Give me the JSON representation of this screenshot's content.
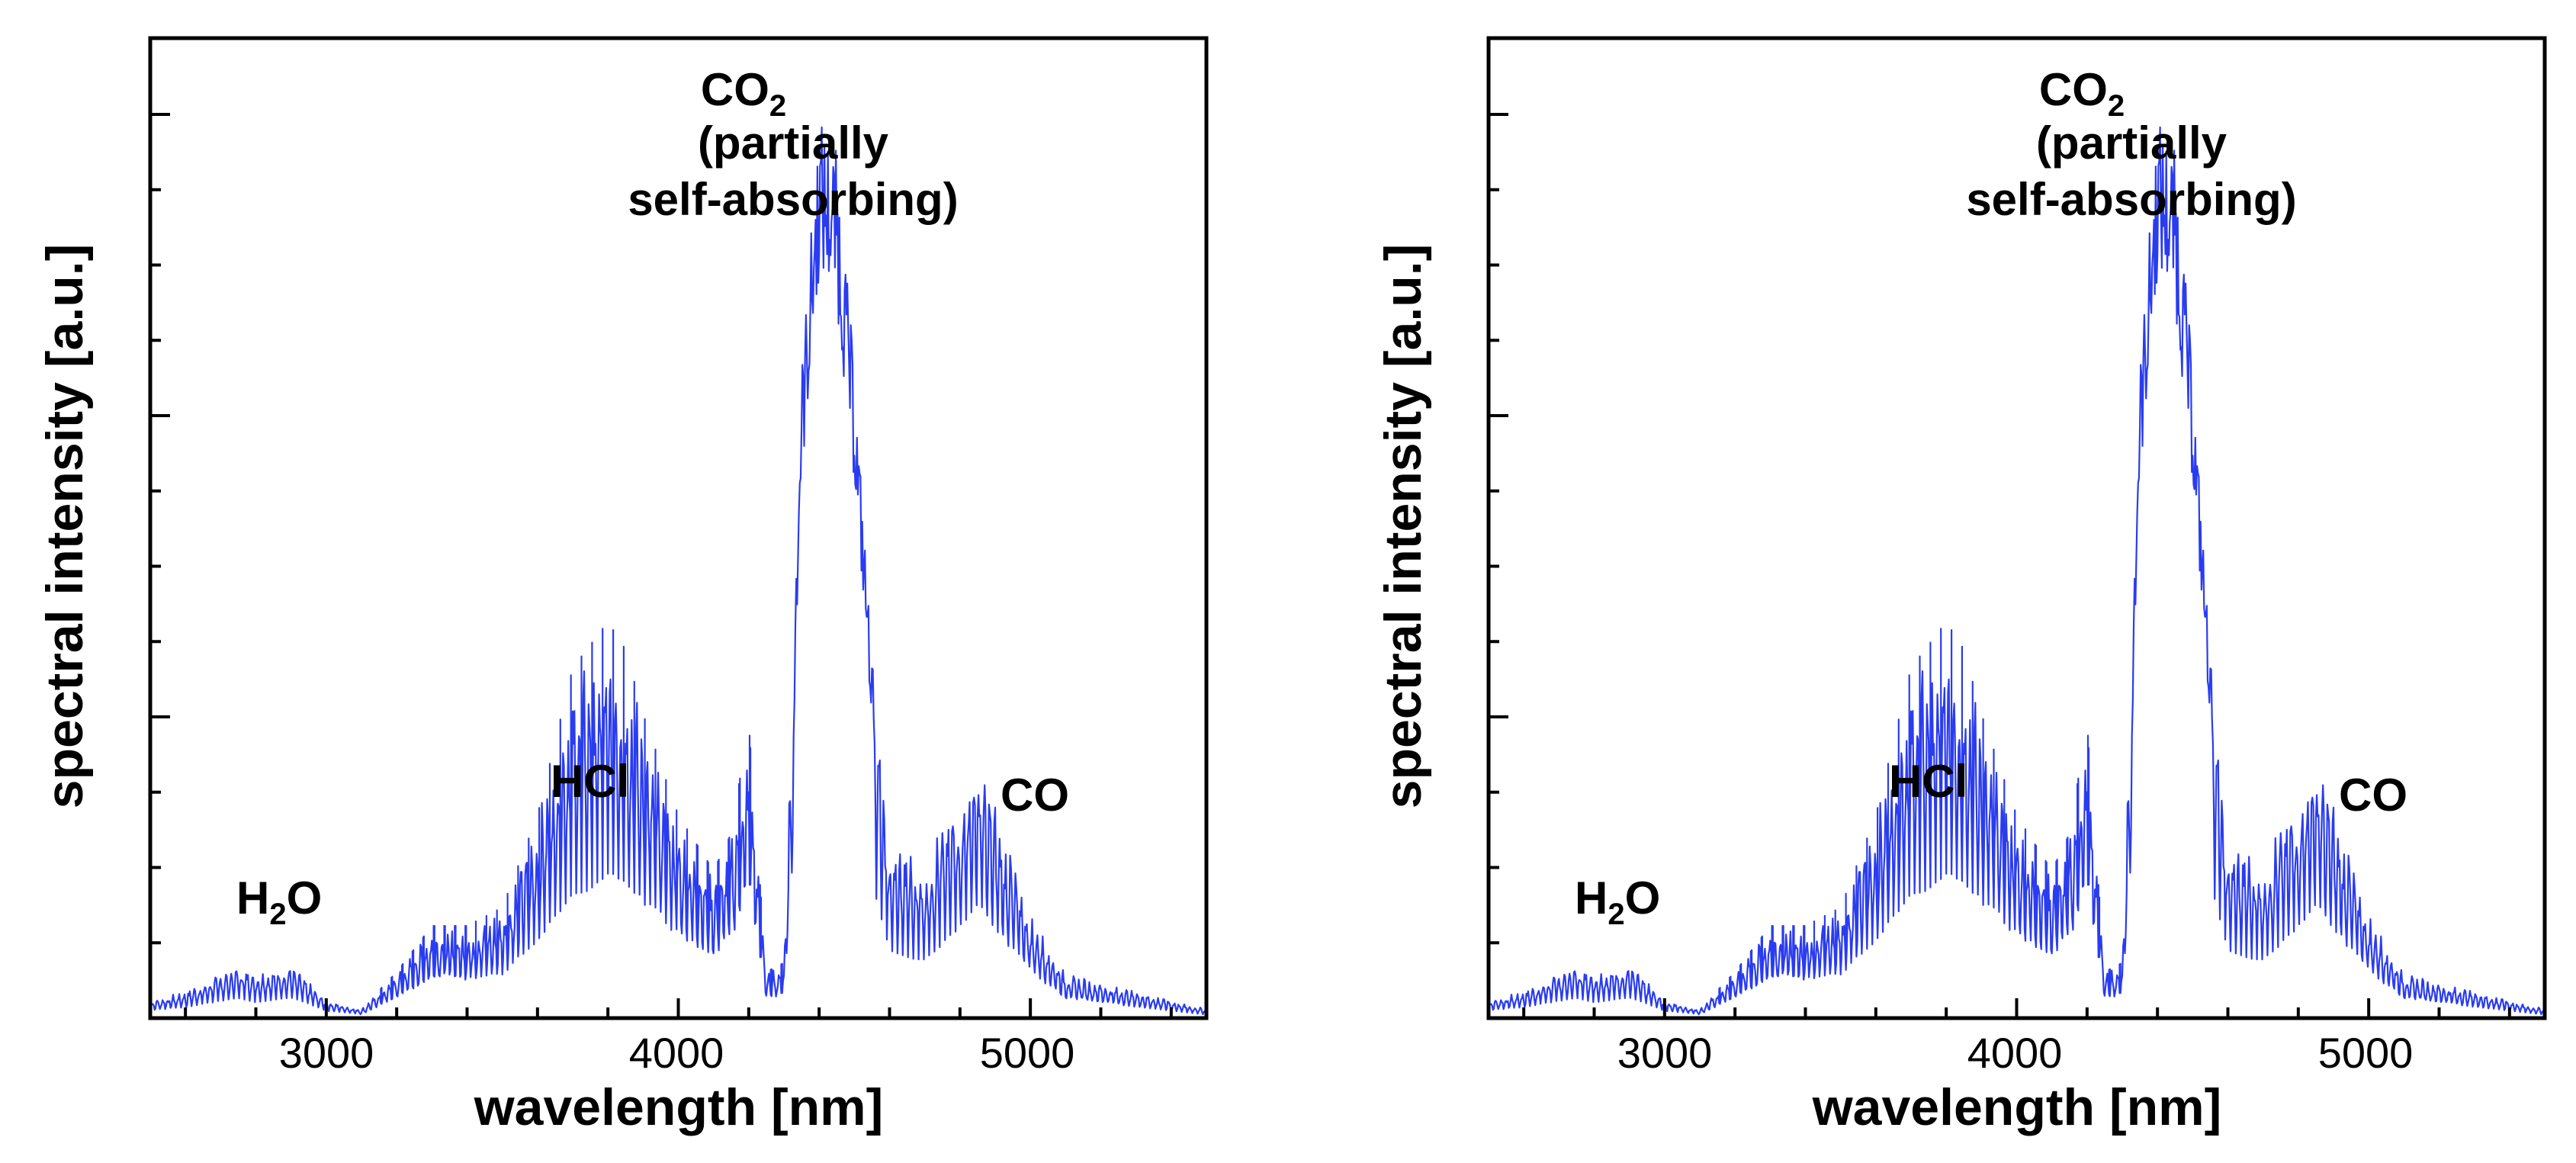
{
  "chart_data": [
    {
      "type": "line",
      "title": "",
      "xlabel": "wavelength [nm]",
      "ylabel": "spectral intensity [a.u.]",
      "xlim": [
        2500,
        5500
      ],
      "ylim": [
        0,
        1.0
      ],
      "x_ticks": [
        "3000",
        "4000",
        "5000"
      ],
      "y_ticks_labeled": false,
      "grid": false,
      "line_color": "#2a3cf0",
      "series": [
        {
          "name": "emission spectrum",
          "x": [
            2500,
            2600,
            2700,
            2750,
            2800,
            2900,
            3000,
            3100,
            3200,
            3300,
            3400,
            3500,
            3600,
            3700,
            3800,
            3850,
            3900,
            4000,
            4100,
            4150,
            4200,
            4250,
            4300,
            4350,
            4400,
            4450,
            4500,
            4550,
            4600,
            4700,
            4800,
            4850,
            4900,
            5000,
            5100,
            5200,
            5300,
            5400,
            5500
          ],
          "y": [
            0.02,
            0.03,
            0.05,
            0.06,
            0.05,
            0.06,
            0.02,
            0.01,
            0.05,
            0.1,
            0.1,
            0.12,
            0.22,
            0.38,
            0.43,
            0.4,
            0.33,
            0.22,
            0.16,
            0.2,
            0.32,
            0.05,
            0.06,
            0.72,
            1.0,
            0.96,
            0.72,
            0.4,
            0.2,
            0.18,
            0.26,
            0.31,
            0.24,
            0.12,
            0.05,
            0.04,
            0.03,
            0.02,
            0.01
          ]
        }
      ],
      "annotations": {
        "h2o": {
          "main": "H",
          "sub": "2",
          "tail": "O"
        },
        "hcl": "HCl",
        "co2": {
          "main": "CO",
          "sub": "2",
          "line2": "(partially",
          "line3": "self-absorbing)"
        },
        "co": "CO"
      }
    },
    {
      "type": "line",
      "title": "",
      "xlabel": "wavelength [nm]",
      "ylabel": "spectral intensity [a.u.]",
      "xlim": [
        2500,
        5500
      ],
      "ylim": [
        0,
        1.0
      ],
      "x_ticks": [
        "3000",
        "4000",
        "5000"
      ],
      "y_ticks_labeled": false,
      "grid": false,
      "line_color": "#2a3cf0",
      "series": [
        {
          "name": "emission spectrum",
          "x": [
            2500,
            2600,
            2700,
            2750,
            2800,
            2900,
            3000,
            3100,
            3200,
            3300,
            3400,
            3500,
            3600,
            3700,
            3800,
            3850,
            3900,
            4000,
            4100,
            4150,
            4200,
            4250,
            4300,
            4350,
            4400,
            4450,
            4500,
            4550,
            4600,
            4700,
            4800,
            4850,
            4900,
            5000,
            5100,
            5200,
            5300,
            5400,
            5500
          ],
          "y": [
            0.02,
            0.03,
            0.05,
            0.06,
            0.05,
            0.06,
            0.02,
            0.01,
            0.05,
            0.1,
            0.1,
            0.12,
            0.22,
            0.38,
            0.43,
            0.4,
            0.33,
            0.22,
            0.16,
            0.2,
            0.32,
            0.05,
            0.06,
            0.72,
            1.0,
            0.96,
            0.72,
            0.4,
            0.2,
            0.18,
            0.26,
            0.31,
            0.24,
            0.12,
            0.05,
            0.04,
            0.03,
            0.02,
            0.01
          ]
        }
      ],
      "annotations": {
        "h2o": {
          "main": "H",
          "sub": "2",
          "tail": "O"
        },
        "hcl": "HCl",
        "co2": {
          "main": "CO",
          "sub": "2",
          "line2": "(partially",
          "line3": "self-absorbing)"
        },
        "co": "CO"
      }
    }
  ]
}
